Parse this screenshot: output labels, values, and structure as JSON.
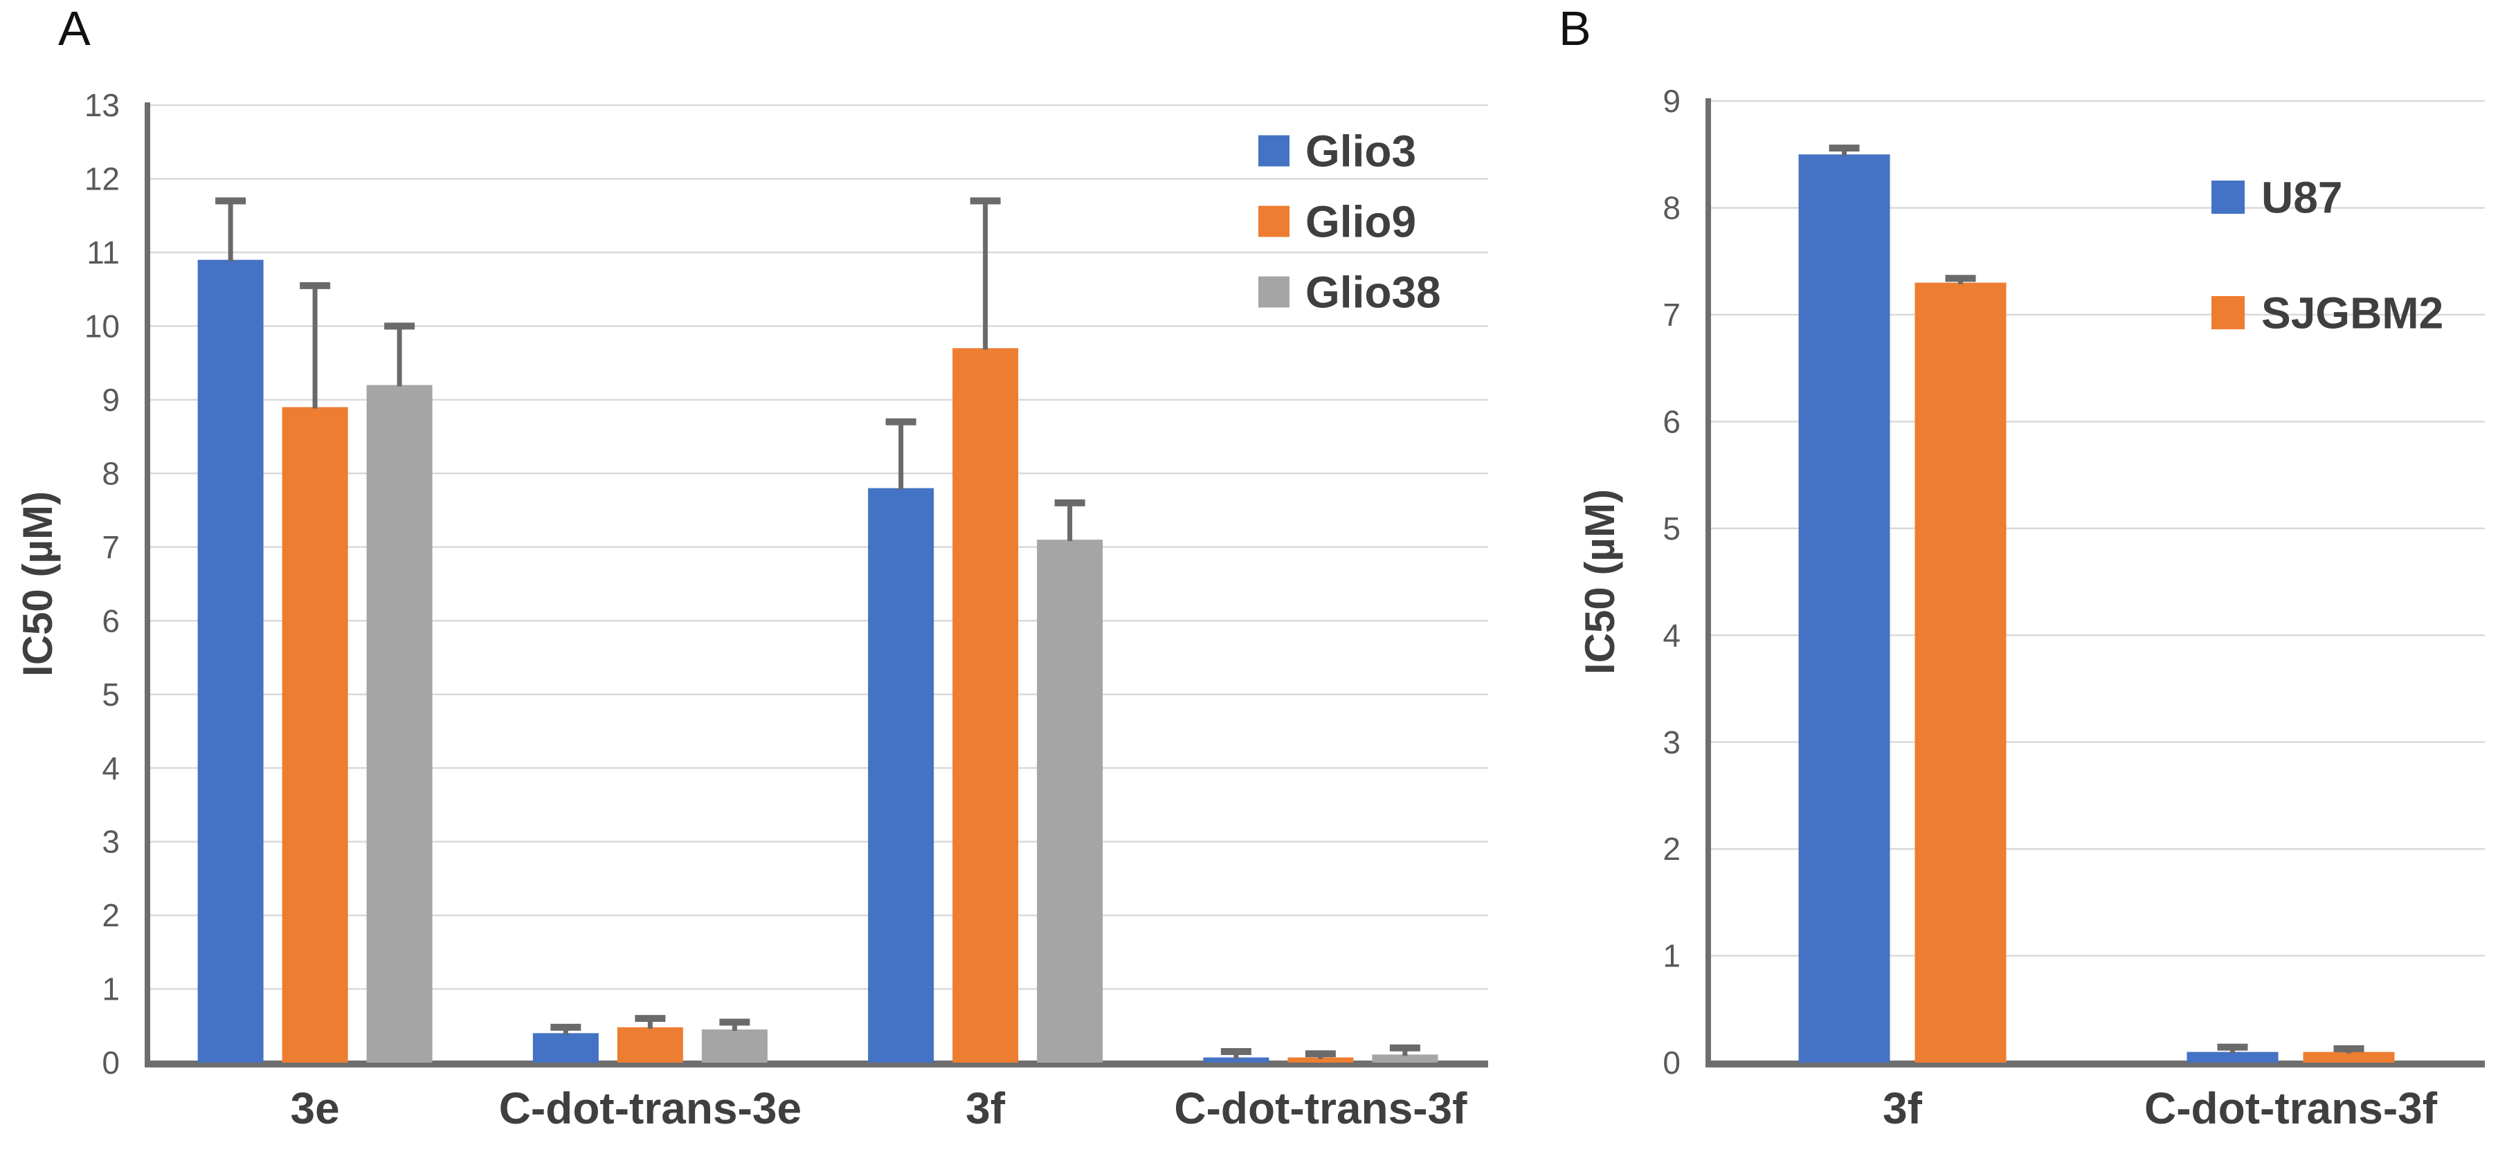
{
  "figure": {
    "background": "#FFFFFF",
    "text_color_ticks": "#595959",
    "text_color_labels": "#3F3F3F",
    "gridline_color": "#D9D9D9",
    "axis_color": "#6E6E6E",
    "error_bar_color": "#6A6A6A"
  },
  "chart_data": [
    {
      "panel_label": "A",
      "type": "bar",
      "title": "",
      "xlabel": "",
      "ylabel": "IC50 (µM)",
      "ylim": [
        0,
        13
      ],
      "ytick_step": 1,
      "y_ticks": [
        0,
        1,
        2,
        3,
        4,
        5,
        6,
        7,
        8,
        9,
        10,
        11,
        12,
        13
      ],
      "grid": "horizontal",
      "legend_position": "upper-right-inside",
      "categories": [
        "3e",
        "C-dot-trans-3e",
        "3f",
        "C-dot-trans-3f"
      ],
      "series": [
        {
          "name": "Glio3",
          "color": "#4472C4",
          "values": [
            10.9,
            0.4,
            7.8,
            0.07
          ],
          "errors_plus": [
            0.8,
            0.08,
            0.9,
            0.08
          ]
        },
        {
          "name": "Glio9",
          "color": "#ED7D31",
          "values": [
            8.9,
            0.48,
            9.7,
            0.07
          ],
          "errors_plus": [
            1.65,
            0.12,
            2.0,
            0.05
          ]
        },
        {
          "name": "Glio38",
          "color": "#A5A5A5",
          "values": [
            9.2,
            0.45,
            7.1,
            0.11
          ],
          "errors_plus": [
            0.8,
            0.1,
            0.5,
            0.09
          ]
        }
      ]
    },
    {
      "panel_label": "B",
      "type": "bar",
      "title": "",
      "xlabel": "",
      "ylabel": "IC50 (µM)",
      "ylim": [
        0,
        9
      ],
      "ytick_step": 1,
      "y_ticks": [
        0,
        1,
        2,
        3,
        4,
        5,
        6,
        7,
        8,
        9
      ],
      "grid": "horizontal",
      "legend_position": "upper-right-inside",
      "categories": [
        "3f",
        "C-dot-trans-3f"
      ],
      "series": [
        {
          "name": "U87",
          "color": "#4472C4",
          "values": [
            8.5,
            0.1
          ],
          "errors_plus": [
            0.06,
            0.045
          ]
        },
        {
          "name": "SJGBM2",
          "color": "#ED7D31",
          "values": [
            7.3,
            0.1
          ],
          "errors_plus": [
            0.04,
            0.03
          ]
        }
      ]
    }
  ]
}
